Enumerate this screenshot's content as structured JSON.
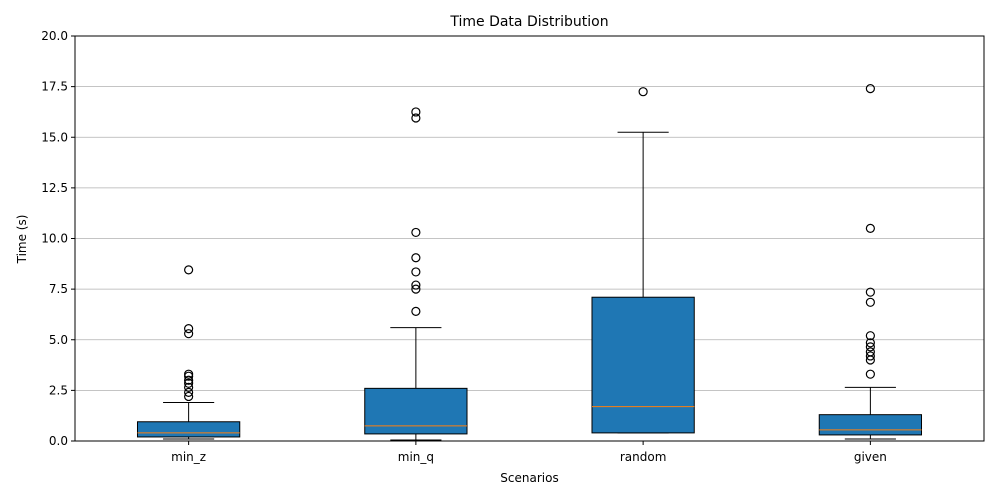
{
  "chart_data": {
    "type": "box",
    "title": "Time Data Distribution",
    "xlabel": "Scenarios",
    "ylabel": "Time (s)",
    "ylim": [
      0,
      20
    ],
    "yticks": [
      0.0,
      2.5,
      5.0,
      7.5,
      10.0,
      12.5,
      15.0,
      17.5,
      20.0
    ],
    "ytick_labels": [
      "0.0",
      "2.5",
      "5.0",
      "7.5",
      "10.0",
      "12.5",
      "15.0",
      "17.5",
      "20.0"
    ],
    "grid": "horizontal",
    "colors": {
      "box_fill": "#1f77b4",
      "median": "#ff7f0e",
      "grid": "#b0b0b0"
    },
    "categories": [
      "min_z",
      "min_q",
      "random",
      "given"
    ],
    "boxes": [
      {
        "name": "min_z",
        "whisker_low": 0.1,
        "q1": 0.2,
        "median": 0.4,
        "q3": 0.95,
        "whisker_high": 1.9,
        "outliers": [
          2.2,
          2.4,
          2.65,
          2.85,
          3.0,
          3.2,
          3.3,
          5.3,
          5.55,
          8.45
        ]
      },
      {
        "name": "min_q",
        "whisker_low": 0.05,
        "q1": 0.35,
        "median": 0.75,
        "q3": 2.6,
        "whisker_high": 5.6,
        "outliers": [
          6.4,
          7.5,
          7.7,
          8.35,
          9.05,
          10.3,
          15.95,
          16.25
        ]
      },
      {
        "name": "random",
        "whisker_low": 0.4,
        "q1": 0.4,
        "median": 1.7,
        "q3": 7.1,
        "whisker_high": 15.25,
        "outliers": [
          17.25
        ]
      },
      {
        "name": "given",
        "whisker_low": 0.1,
        "q1": 0.3,
        "median": 0.55,
        "q3": 1.3,
        "whisker_high": 2.65,
        "outliers": [
          3.3,
          4.0,
          4.2,
          4.4,
          4.65,
          4.85,
          5.2,
          6.85,
          7.35,
          10.5,
          17.4
        ]
      }
    ]
  }
}
